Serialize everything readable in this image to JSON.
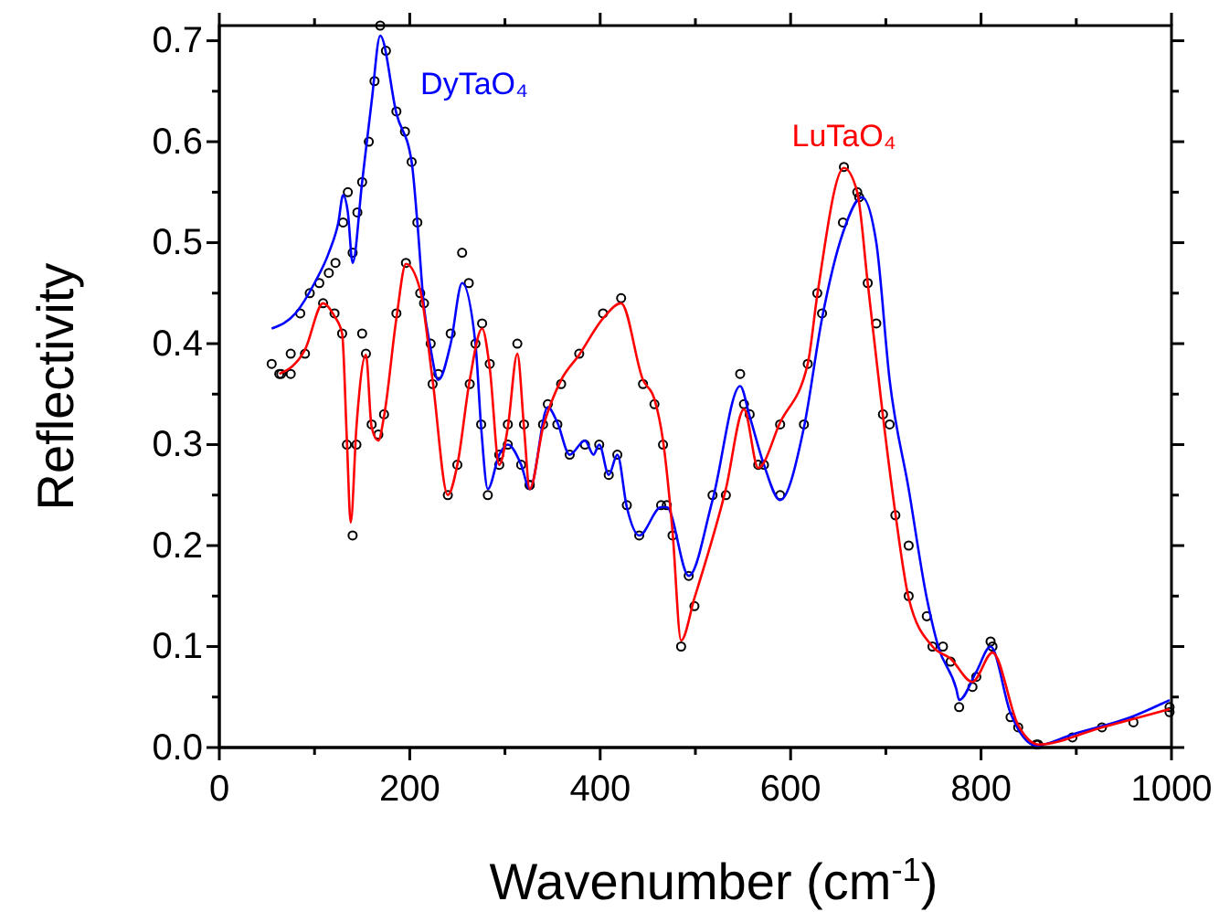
{
  "chart_data": {
    "type": "line",
    "xlabel": "Wavenumber (cm$^{-1}$)",
    "ylabel": "Reflectivity",
    "xlim": [
      0,
      1000
    ],
    "ylim": [
      0,
      0.715
    ],
    "xticks": [
      0,
      {
        "value": 100,
        "label": null
      },
      200,
      {
        "value": 300,
        "label": null
      },
      400,
      {
        "value": 500,
        "label": null
      },
      600,
      {
        "value": 700,
        "label": null
      },
      800,
      {
        "value": 900,
        "label": null
      },
      1000
    ],
    "yticks": [
      {
        "value": 0,
        "label": "0.0"
      },
      {
        "value": 0.05,
        "label": null
      },
      {
        "value": 0.1,
        "label": "0.1"
      },
      {
        "value": 0.15,
        "label": null
      },
      {
        "value": 0.2,
        "label": "0.2"
      },
      {
        "value": 0.25,
        "label": null
      },
      {
        "value": 0.3,
        "label": "0.3"
      },
      {
        "value": 0.35,
        "label": null
      },
      {
        "value": 0.4,
        "label": "0.4"
      },
      {
        "value": 0.45,
        "label": null
      },
      {
        "value": 0.5,
        "label": "0.5"
      },
      {
        "value": 0.55,
        "label": null
      },
      {
        "value": 0.6,
        "label": "0.6"
      },
      {
        "value": 0.65,
        "label": null
      },
      {
        "value": 0.7,
        "label": "0.7"
      }
    ],
    "grid": false,
    "series": [
      {
        "type": "scatter",
        "color": "#000000",
        "marker": "circle",
        "x": [
          55,
          65,
          75,
          85,
          95,
          105,
          115,
          122,
          130,
          135,
          140,
          145,
          150,
          157,
          163,
          169,
          175,
          186,
          195,
          202,
          208,
          215,
          222,
          230,
          243,
          255,
          262,
          269,
          275,
          282,
          294,
          303,
          317,
          326,
          345,
          355,
          368,
          384,
          399,
          409,
          418,
          428,
          441,
          464,
          470,
          493,
          518,
          547,
          557,
          572,
          589,
          614,
          633,
          655,
          672,
          690,
          704,
          724,
          743,
          760,
          777,
          795,
          810,
          831,
          858,
          896,
          960,
          998
        ],
        "values": [
          0.38,
          0.37,
          0.39,
          0.43,
          0.45,
          0.46,
          0.47,
          0.48,
          0.52,
          0.55,
          0.49,
          0.53,
          0.56,
          0.6,
          0.66,
          0.715,
          0.69,
          0.63,
          0.61,
          0.58,
          0.52,
          0.44,
          0.4,
          0.37,
          0.41,
          0.49,
          0.46,
          0.4,
          0.32,
          0.25,
          0.29,
          0.3,
          0.28,
          0.26,
          0.34,
          0.32,
          0.29,
          0.3,
          0.3,
          0.27,
          0.29,
          0.24,
          0.21,
          0.24,
          0.24,
          0.17,
          0.25,
          0.37,
          0.33,
          0.28,
          0.25,
          0.32,
          0.43,
          0.52,
          0.545,
          0.42,
          0.32,
          0.2,
          0.13,
          0.1,
          0.04,
          0.07,
          0.105,
          0.03,
          0.003,
          0.01,
          0.025,
          0.04
        ]
      },
      {
        "type": "scatter",
        "color": "#000000",
        "marker": "circle",
        "x": [
          63,
          75,
          90,
          109,
          121,
          129,
          134,
          140,
          144,
          150,
          154,
          160,
          167,
          173,
          186,
          196,
          211,
          224,
          240,
          250,
          263,
          276,
          284,
          294,
          303,
          313,
          320,
          326,
          340,
          359,
          378,
          403,
          422,
          445,
          457,
          466,
          476,
          485,
          499,
          532,
          551,
          566,
          589,
          618,
          628,
          656,
          670,
          681,
          697,
          710,
          724,
          749,
          768,
          791,
          812,
          839,
          860,
          927,
          998
        ],
        "values": [
          0.37,
          0.37,
          0.39,
          0.44,
          0.43,
          0.41,
          0.3,
          0.21,
          0.3,
          0.41,
          0.39,
          0.32,
          0.31,
          0.33,
          0.43,
          0.48,
          0.45,
          0.36,
          0.25,
          0.28,
          0.36,
          0.42,
          0.38,
          0.28,
          0.32,
          0.4,
          0.32,
          0.26,
          0.32,
          0.36,
          0.39,
          0.43,
          0.445,
          0.36,
          0.34,
          0.3,
          0.21,
          0.1,
          0.14,
          0.25,
          0.34,
          0.28,
          0.32,
          0.38,
          0.45,
          0.575,
          0.55,
          0.46,
          0.33,
          0.23,
          0.15,
          0.1,
          0.085,
          0.06,
          0.1,
          0.02,
          0.003,
          0.02,
          0.035
        ]
      },
      {
        "name": "DyTaO₄",
        "color": "#0000ff",
        "marker": "none",
        "line_style": "solid",
        "x": [
          55,
          80,
          100,
          115,
          125,
          130,
          135,
          140,
          150,
          160,
          169,
          186,
          202,
          208,
          215,
          221,
          230,
          243,
          255,
          269,
          275,
          282,
          294,
          303,
          317,
          326,
          345,
          355,
          368,
          384,
          393,
          399,
          409,
          418,
          428,
          441,
          464,
          470,
          493,
          518,
          547,
          557,
          572,
          589,
          614,
          633,
          655,
          675,
          690,
          704,
          724,
          743,
          755,
          774,
          777,
          795,
          810,
          831,
          858,
          896,
          960,
          998
        ],
        "values": [
          0.415,
          0.43,
          0.46,
          0.49,
          0.52,
          0.547,
          0.53,
          0.48,
          0.56,
          0.64,
          0.705,
          0.628,
          0.58,
          0.52,
          0.436,
          0.4,
          0.364,
          0.4,
          0.46,
          0.4,
          0.317,
          0.256,
          0.29,
          0.3,
          0.28,
          0.256,
          0.337,
          0.322,
          0.29,
          0.304,
          0.29,
          0.3,
          0.27,
          0.29,
          0.238,
          0.21,
          0.238,
          0.238,
          0.17,
          0.245,
          0.358,
          0.328,
          0.28,
          0.245,
          0.317,
          0.425,
          0.51,
          0.545,
          0.5,
          0.364,
          0.256,
          0.148,
          0.1,
          0.058,
          0.047,
          0.075,
          0.1,
          0.034,
          0.002,
          0.013,
          0.031,
          0.047
        ]
      },
      {
        "name": "LuTaO₄",
        "color": "#ff0000",
        "marker": "none",
        "line_style": "solid",
        "x": [
          63,
          90,
          109,
          121,
          129,
          134,
          138,
          144,
          154,
          160,
          167,
          173,
          186,
          196,
          211,
          224,
          240,
          250,
          263,
          276,
          284,
          294,
          303,
          313,
          320,
          326,
          340,
          359,
          378,
          403,
          422,
          445,
          457,
          466,
          476,
          485,
          499,
          532,
          551,
          566,
          589,
          618,
          628,
          656,
          670,
          681,
          697,
          710,
          724,
          749,
          768,
          791,
          812,
          839,
          860,
          927,
          998
        ],
        "values": [
          0.37,
          0.394,
          0.44,
          0.427,
          0.41,
          0.304,
          0.223,
          0.317,
          0.389,
          0.317,
          0.304,
          0.328,
          0.425,
          0.479,
          0.453,
          0.364,
          0.25,
          0.28,
          0.364,
          0.415,
          0.376,
          0.28,
          0.317,
          0.39,
          0.317,
          0.256,
          0.317,
          0.364,
          0.389,
          0.425,
          0.44,
          0.364,
          0.345,
          0.304,
          0.214,
          0.106,
          0.148,
          0.256,
          0.335,
          0.277,
          0.322,
          0.38,
          0.448,
          0.574,
          0.55,
          0.46,
          0.328,
          0.232,
          0.148,
          0.1,
          0.088,
          0.065,
          0.094,
          0.022,
          0.003,
          0.02,
          0.038
        ]
      }
    ]
  }
}
